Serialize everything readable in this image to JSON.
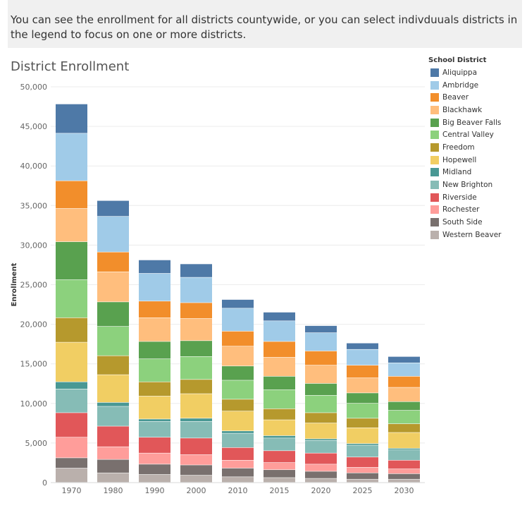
{
  "banner": {
    "text": "You can see the enrollment for all districts countywide, or you can select indivduuals districts in the legend to focus on one or more districts."
  },
  "chart_data": {
    "type": "bar",
    "stacked": true,
    "title": "District Enrollment",
    "xlabel": "",
    "ylabel": "Enrollment",
    "ylim": [
      0,
      50000
    ],
    "yticks": [
      0,
      5000,
      10000,
      15000,
      20000,
      25000,
      30000,
      35000,
      40000,
      45000,
      50000
    ],
    "ytick_labels": [
      "0",
      "5,000",
      "10,000",
      "15,000",
      "20,000",
      "25,000",
      "30,000",
      "35,000",
      "40,000",
      "45,000",
      "50,000"
    ],
    "grid": "horizontal",
    "legend_title": "School District",
    "legend_position": "right",
    "categories": [
      "1970",
      "1980",
      "1990",
      "2000",
      "2010",
      "2015",
      "2020",
      "2025",
      "2030"
    ],
    "series": [
      {
        "name": "Western Beaver",
        "color": "#bab0ac",
        "values": [
          1800,
          1200,
          1000,
          900,
          700,
          600,
          500,
          400,
          400
        ]
      },
      {
        "name": "South Side",
        "color": "#79706e",
        "values": [
          1300,
          1700,
          1300,
          1300,
          1100,
          1000,
          900,
          800,
          700
        ]
      },
      {
        "name": "Rochester",
        "color": "#ff9d9a",
        "values": [
          2600,
          1600,
          1400,
          1300,
          1000,
          900,
          900,
          700,
          600
        ]
      },
      {
        "name": "Riverside",
        "color": "#e15759",
        "values": [
          3100,
          2600,
          2000,
          2100,
          1600,
          1500,
          1400,
          1300,
          1100
        ]
      },
      {
        "name": "New Brighton",
        "color": "#86bcb6",
        "values": [
          3000,
          2500,
          2000,
          2100,
          1800,
          1600,
          1600,
          1500,
          1300
        ]
      },
      {
        "name": "Midland",
        "color": "#499894",
        "values": [
          900,
          500,
          300,
          400,
          300,
          300,
          200,
          200,
          200
        ]
      },
      {
        "name": "Hopewell",
        "color": "#f1ce63",
        "values": [
          5000,
          3500,
          2900,
          3100,
          2500,
          2000,
          2000,
          2000,
          2000
        ]
      },
      {
        "name": "Freedom",
        "color": "#b6992d",
        "values": [
          3100,
          2400,
          1800,
          1800,
          1500,
          1400,
          1300,
          1200,
          1100
        ]
      },
      {
        "name": "Central Valley",
        "color": "#8cd17d",
        "values": [
          4800,
          3700,
          2900,
          2900,
          2400,
          2400,
          2200,
          1900,
          1700
        ]
      },
      {
        "name": "Big Beaver Falls",
        "color": "#59a14f",
        "values": [
          4800,
          3100,
          2200,
          2000,
          1800,
          1700,
          1500,
          1300,
          1100
        ]
      },
      {
        "name": "Blackhawk",
        "color": "#ffbe7d",
        "values": [
          4200,
          3800,
          3000,
          2800,
          2500,
          2400,
          2300,
          1900,
          1800
        ]
      },
      {
        "name": "Beaver",
        "color": "#f28e2b",
        "values": [
          3500,
          2500,
          2100,
          2000,
          1900,
          2000,
          1800,
          1600,
          1400
        ]
      },
      {
        "name": "Ambridge",
        "color": "#a0cbe8",
        "values": [
          6000,
          4500,
          3500,
          3200,
          2900,
          2600,
          2300,
          2000,
          1700
        ]
      },
      {
        "name": "Aliquippa",
        "color": "#4e79a7",
        "values": [
          3700,
          2000,
          1700,
          1700,
          1100,
          1100,
          900,
          800,
          800
        ]
      }
    ]
  },
  "legend": {
    "title": "School District",
    "items": [
      {
        "name": "Aliquippa",
        "color": "#4e79a7"
      },
      {
        "name": "Ambridge",
        "color": "#a0cbe8"
      },
      {
        "name": "Beaver",
        "color": "#f28e2b"
      },
      {
        "name": "Blackhawk",
        "color": "#ffbe7d"
      },
      {
        "name": "Big Beaver Falls",
        "color": "#59a14f"
      },
      {
        "name": "Central Valley",
        "color": "#8cd17d"
      },
      {
        "name": "Freedom",
        "color": "#b6992d"
      },
      {
        "name": "Hopewell",
        "color": "#f1ce63"
      },
      {
        "name": "Midland",
        "color": "#499894"
      },
      {
        "name": "New Brighton",
        "color": "#86bcb6"
      },
      {
        "name": "Riverside",
        "color": "#e15759"
      },
      {
        "name": "Rochester",
        "color": "#ff9d9a"
      },
      {
        "name": "South Side",
        "color": "#79706e"
      },
      {
        "name": "Western Beaver",
        "color": "#bab0ac"
      }
    ]
  }
}
